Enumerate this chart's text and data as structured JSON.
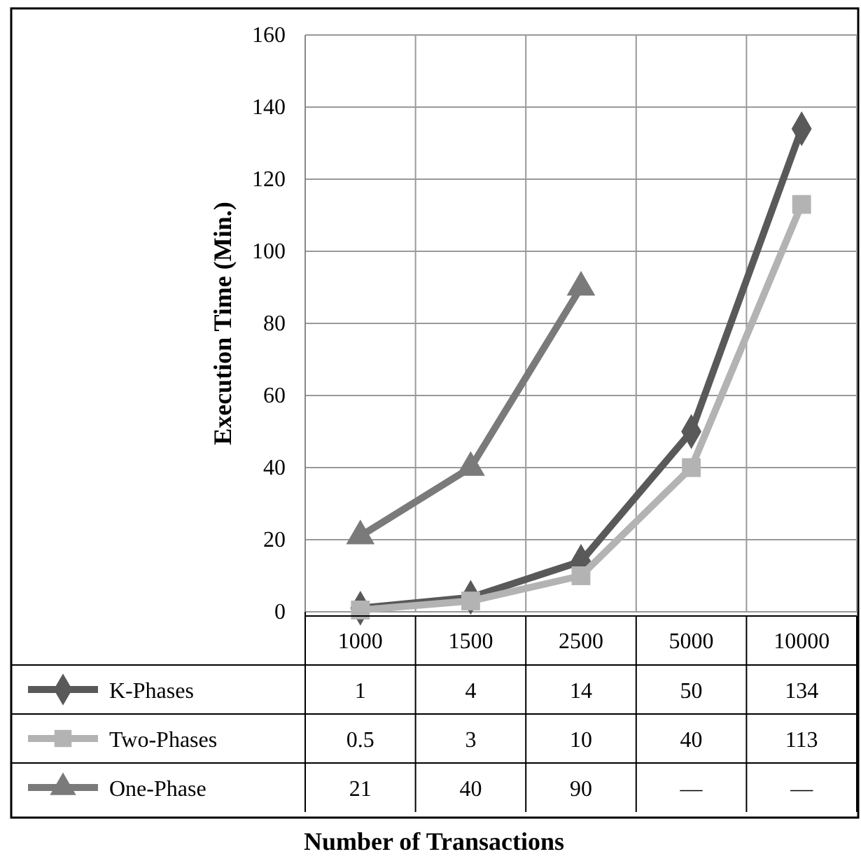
{
  "chart_data": {
    "type": "line",
    "annotations": [
      "Number of Transactions"
    ],
    "ylabel": "Execution Time (Min.)",
    "categories": [
      "1000",
      "1500",
      "2500",
      "5000",
      "10000"
    ],
    "ylim": [
      0,
      160
    ],
    "yticks": [
      0,
      20,
      40,
      60,
      80,
      100,
      120,
      140,
      160
    ],
    "grid": true,
    "legend": "bottom",
    "series": [
      {
        "name": "K-Phases",
        "color": "#595959",
        "marker": "diamond",
        "values": [
          1,
          4,
          14,
          50,
          134
        ],
        "value_labels": [
          "1",
          "4",
          "14",
          "50",
          "134"
        ]
      },
      {
        "name": "Two-Phases",
        "color": "#b3b3b3",
        "marker": "square",
        "values": [
          0.5,
          3,
          10,
          40,
          113
        ],
        "value_labels": [
          "0.5",
          "3",
          "10",
          "40",
          "113"
        ]
      },
      {
        "name": "One-Phase",
        "color": "#7a7a7a",
        "marker": "triangle",
        "values": [
          21,
          40,
          90,
          null,
          null
        ],
        "value_labels": [
          "21",
          "40",
          "90",
          "—",
          "—"
        ]
      }
    ]
  }
}
